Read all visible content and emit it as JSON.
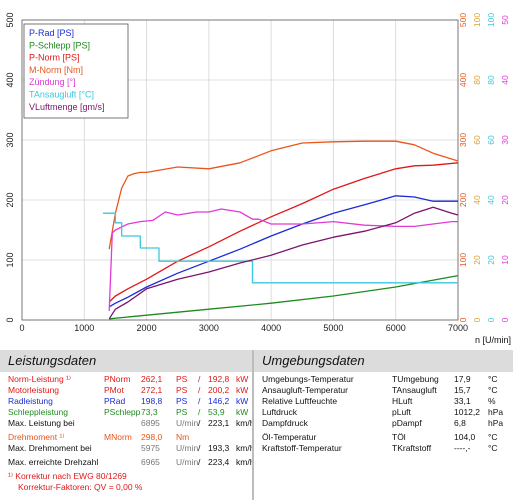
{
  "chart_data": {
    "type": "line",
    "xlabel": "n [U/min]",
    "xlim": [
      0,
      7000
    ],
    "x_ticks": [
      "0",
      "1000",
      "2000",
      "3000",
      "4000",
      "5000",
      "6000",
      "7000"
    ],
    "left_axis": {
      "ylim": [
        0,
        500
      ],
      "ticks": [
        "0",
        "100",
        "200",
        "300",
        "400",
        "500"
      ]
    },
    "right_axes": [
      {
        "color": "#e8561c",
        "ticks": [
          "0",
          "100",
          "200",
          "300",
          "400",
          "500"
        ]
      },
      {
        "color": "#e0a030",
        "ticks": [
          "0",
          "20",
          "40",
          "60",
          "80",
          "100"
        ]
      },
      {
        "color": "#39c8e0",
        "ticks": [
          "0",
          "20",
          "40",
          "60",
          "80",
          "100"
        ]
      },
      {
        "color": "#e03ad8",
        "ticks": [
          "0",
          "10",
          "20",
          "30",
          "40",
          "50"
        ]
      }
    ],
    "grid": true,
    "legend_position": "top-left",
    "series": [
      {
        "name": "P-Rad [PS]",
        "color": "#1a2bd6",
        "x": [
          1400,
          1500,
          1700,
          2000,
          2500,
          3000,
          3500,
          4000,
          4500,
          5000,
          5500,
          6000,
          6300,
          6600,
          7000
        ],
        "y": [
          22,
          28,
          38,
          55,
          78,
          98,
          118,
          140,
          160,
          178,
          192,
          207,
          205,
          198,
          198
        ]
      },
      {
        "name": "P-Schlepp [PS]",
        "color": "#1f8a1f",
        "x": [
          1400,
          2000,
          3000,
          4000,
          5000,
          6000,
          7000
        ],
        "y": [
          2,
          8,
          18,
          28,
          40,
          55,
          74
        ]
      },
      {
        "name": "P-Norm [PS]",
        "color": "#e01818",
        "x": [
          1400,
          1500,
          1700,
          2000,
          2500,
          3000,
          3500,
          4000,
          4500,
          5000,
          5500,
          6000,
          6300,
          6600,
          7000
        ],
        "y": [
          30,
          40,
          52,
          68,
          98,
          122,
          148,
          172,
          194,
          218,
          236,
          252,
          257,
          258,
          262
        ]
      },
      {
        "name": "M-Norm [Nm]",
        "color": "#e8561c",
        "x": [
          1400,
          1500,
          1600,
          1700,
          1800,
          1900,
          2000,
          2500,
          3000,
          3500,
          4000,
          4500,
          5000,
          5500,
          6000,
          6300,
          6600,
          7000
        ],
        "y": [
          118,
          178,
          220,
          240,
          244,
          246,
          246,
          255,
          252,
          262,
          282,
          295,
          297,
          298,
          298,
          292,
          278,
          265
        ]
      },
      {
        "name": "Zündung [°]",
        "color": "#e03ad8",
        "x": [
          1400,
          1450,
          1500,
          1700,
          1900,
          2100,
          2300,
          2500,
          2800,
          3000,
          3200,
          3500,
          3700,
          3800,
          4000,
          4500,
          5000,
          5500,
          6000,
          6300,
          6600,
          6900,
          7000
        ],
        "y": [
          15,
          145,
          150,
          160,
          164,
          166,
          180,
          175,
          180,
          180,
          185,
          180,
          168,
          168,
          160,
          160,
          164,
          158,
          156,
          156,
          160,
          164,
          164
        ]
      },
      {
        "name": "TAnsaugluft [°C]",
        "color": "#39c8e0",
        "x": [
          1300,
          1500,
          1500,
          1600,
          1600,
          1900,
          1900,
          2200,
          2200,
          3700,
          3700,
          7000
        ],
        "y": [
          178,
          178,
          162,
          162,
          140,
          140,
          120,
          120,
          98,
          98,
          62,
          62
        ]
      },
      {
        "name": "VLuftmenge [gm/s]",
        "color": "#7a1470",
        "x": [
          1400,
          1500,
          1700,
          2000,
          2500,
          3000,
          3500,
          4000,
          4500,
          5000,
          5500,
          6000,
          6300,
          6600,
          6900,
          7000
        ],
        "y": [
          2,
          18,
          30,
          52,
          68,
          80,
          95,
          108,
          125,
          138,
          148,
          162,
          178,
          188,
          178,
          175
        ]
      }
    ]
  },
  "legend": [
    {
      "label": "P-Rad [PS]",
      "color": "#1a2bd6"
    },
    {
      "label": "P-Schlepp [PS]",
      "color": "#1f8a1f"
    },
    {
      "label": "P-Norm [PS]",
      "color": "#e01818"
    },
    {
      "label": "M-Norm [Nm]",
      "color": "#e8561c"
    },
    {
      "label": "Zündung [°]",
      "color": "#e03ad8"
    },
    {
      "label": "TAnsaugluft [°C]",
      "color": "#39c8e0"
    },
    {
      "label": "VLuftmenge [gm/s]",
      "color": "#7a1470"
    }
  ],
  "leistung": {
    "title": "Leistungsdaten",
    "rows": [
      {
        "label": "Norm-Leistung ¹⁾",
        "sym": "PNorm",
        "v1": "262,1",
        "u1": "PS",
        "sep": "/",
        "v2": "192,8",
        "u2": "kW",
        "color": "#e01818"
      },
      {
        "label": "Motorleistung",
        "sym": "PMot",
        "v1": "272,1",
        "u1": "PS",
        "sep": "/",
        "v2": "200,2",
        "u2": "kW",
        "color": "#e01818"
      },
      {
        "label": "Radleistung",
        "sym": "PRad",
        "v1": "198,8",
        "u1": "PS",
        "sep": "/",
        "v2": "146,2",
        "u2": "kW",
        "color": "#1a2bd6"
      },
      {
        "label": "Schleppleistung",
        "sym": "PSchlepp",
        "v1": "73,3",
        "u1": "PS",
        "sep": "/",
        "v2": "53,9",
        "u2": "kW",
        "color": "#1f8a1f"
      },
      {
        "label": "Max. Leistung bei",
        "sym": "",
        "v1": "6895",
        "u1": "U/min",
        "sep": "/",
        "v2": "223,1",
        "u2": "km/h",
        "color": "#111111"
      },
      {
        "label": "Drehmoment ¹⁾",
        "sym": "MNorm",
        "v1": "298,0",
        "u1": "Nm",
        "sep": "",
        "v2": "",
        "u2": "",
        "color": "#e8561c"
      },
      {
        "label": "Max. Drehmoment bei",
        "sym": "",
        "v1": "5975",
        "u1": "U/min",
        "sep": "/",
        "v2": "193,3",
        "u2": "km/h",
        "color": "#111111"
      },
      {
        "label": "Max. erreichte Drehzahl",
        "sym": "",
        "v1": "6965",
        "u1": "U/min",
        "sep": "/",
        "v2": "223,4",
        "u2": "km/h",
        "color": "#111111"
      }
    ],
    "footnote1": "¹⁾ Korrektur nach EWG 80/1269",
    "footnote2": "Korrektur-Faktoren: QV = 0,00 %"
  },
  "umgebung": {
    "title": "Umgebungsdaten",
    "rows": [
      {
        "label": "Umgebungs-Temperatur",
        "sym": "TUmgebung",
        "value": "17,9",
        "unit": "°C"
      },
      {
        "label": "Ansaugluft-Temperatur",
        "sym": "TAnsaugluft",
        "value": "15,7",
        "unit": "°C"
      },
      {
        "label": "Relative Luftfeuchte",
        "sym": "HLuft",
        "value": "33,1",
        "unit": "%"
      },
      {
        "label": "Luftdruck",
        "sym": "pLuft",
        "value": "1012,2",
        "unit": "hPa"
      },
      {
        "label": "Dampfdruck",
        "sym": "pDampf",
        "value": "6,8",
        "unit": "hPa"
      },
      {
        "label": "Öl-Temperatur",
        "sym": "TÖl",
        "value": "104,0",
        "unit": "°C"
      },
      {
        "label": "Kraftstoff-Temperatur",
        "sym": "TKraftstoff",
        "value": "----,-",
        "unit": "°C"
      }
    ]
  }
}
